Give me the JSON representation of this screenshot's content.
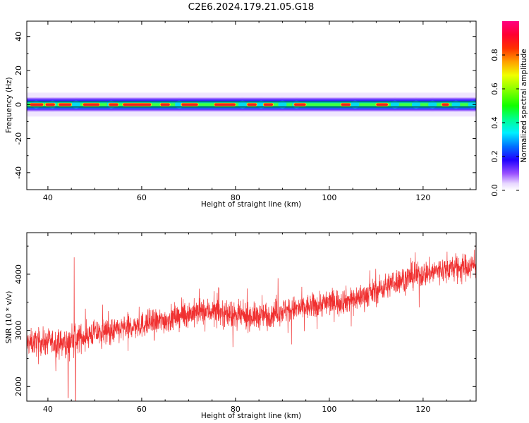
{
  "figure": {
    "title": "C2E6.2024.179.21.05.G18"
  },
  "chart_data": [
    {
      "type": "heatmap",
      "xlabel": "Height of straight line (km)",
      "ylabel": "Frequency (Hz)",
      "xlim": [
        35.5,
        131.3
      ],
      "ylim": [
        -50,
        49
      ],
      "xticks": [
        40,
        60,
        80,
        100,
        120
      ],
      "yticks": [
        -40,
        -20,
        0,
        20,
        40
      ],
      "colorbar": {
        "label": "Normalized spectral amplitude",
        "range": [
          0,
          1
        ],
        "ticks": [
          "0.0",
          "0.2",
          "0.4",
          "0.6",
          "0.8"
        ],
        "colormap": "hsv-rainbow (white/violet low → blue → cyan → green → yellow → red → magenta high)"
      },
      "reference_lines_hz": [
        1.5,
        -1.5
      ],
      "signal_band_hz": [
        -4,
        4
      ],
      "peak_frequency_hz": 0,
      "peak_segments_km": [
        [
          36.2,
          39.0
        ],
        [
          39.5,
          41.5
        ],
        [
          42.3,
          45.0
        ],
        [
          47.5,
          51.0
        ],
        [
          53.0,
          55.0
        ],
        [
          56.0,
          62.0
        ],
        [
          64.0,
          66.0
        ],
        [
          68.5,
          72.0
        ],
        [
          75.5,
          80.0
        ],
        [
          82.5,
          84.5
        ],
        [
          86.0,
          88.0
        ],
        [
          92.5,
          95.0
        ],
        [
          102.5,
          104.5
        ],
        [
          110.0,
          112.5
        ],
        [
          124.0,
          125.5
        ]
      ],
      "band_bumps_km": [
        37.5,
        41.0,
        46.0,
        53.5,
        68.0,
        81.5,
        85.5,
        90.0,
        93.0,
        105.5,
        114.0,
        118.5,
        122.0,
        127.0,
        130.5
      ]
    },
    {
      "type": "line",
      "xlabel": "Height of straight line (km)",
      "ylabel": "SNR (10 * v/v)",
      "xlim": [
        35.5,
        131.3
      ],
      "ylim": [
        1740,
        4740
      ],
      "xticks": [
        40,
        60,
        80,
        100,
        120
      ],
      "yticks": [
        2000,
        3000,
        4000
      ],
      "series": [
        {
          "color": "#f03030",
          "x_range": [
            35.5,
            131.3
          ],
          "trend_points": [
            {
              "x": 36,
              "y": 2780
            },
            {
              "x": 40,
              "y": 2800
            },
            {
              "x": 44,
              "y": 2760
            },
            {
              "x": 46,
              "y": 2850
            },
            {
              "x": 50,
              "y": 2950
            },
            {
              "x": 55,
              "y": 3000
            },
            {
              "x": 60,
              "y": 3100
            },
            {
              "x": 65,
              "y": 3180
            },
            {
              "x": 70,
              "y": 3300
            },
            {
              "x": 75,
              "y": 3350
            },
            {
              "x": 80,
              "y": 3250
            },
            {
              "x": 85,
              "y": 3250
            },
            {
              "x": 90,
              "y": 3350
            },
            {
              "x": 95,
              "y": 3400
            },
            {
              "x": 100,
              "y": 3500
            },
            {
              "x": 105,
              "y": 3550
            },
            {
              "x": 110,
              "y": 3700
            },
            {
              "x": 115,
              "y": 3900
            },
            {
              "x": 120,
              "y": 4000
            },
            {
              "x": 125,
              "y": 4100
            },
            {
              "x": 131,
              "y": 4150
            }
          ],
          "noise_amplitude": 300,
          "notable_spikes": [
            {
              "x": 45.6,
              "y": 4300
            },
            {
              "x": 45.9,
              "y": 1750
            },
            {
              "x": 44.3,
              "y": 1800
            }
          ]
        }
      ]
    }
  ]
}
